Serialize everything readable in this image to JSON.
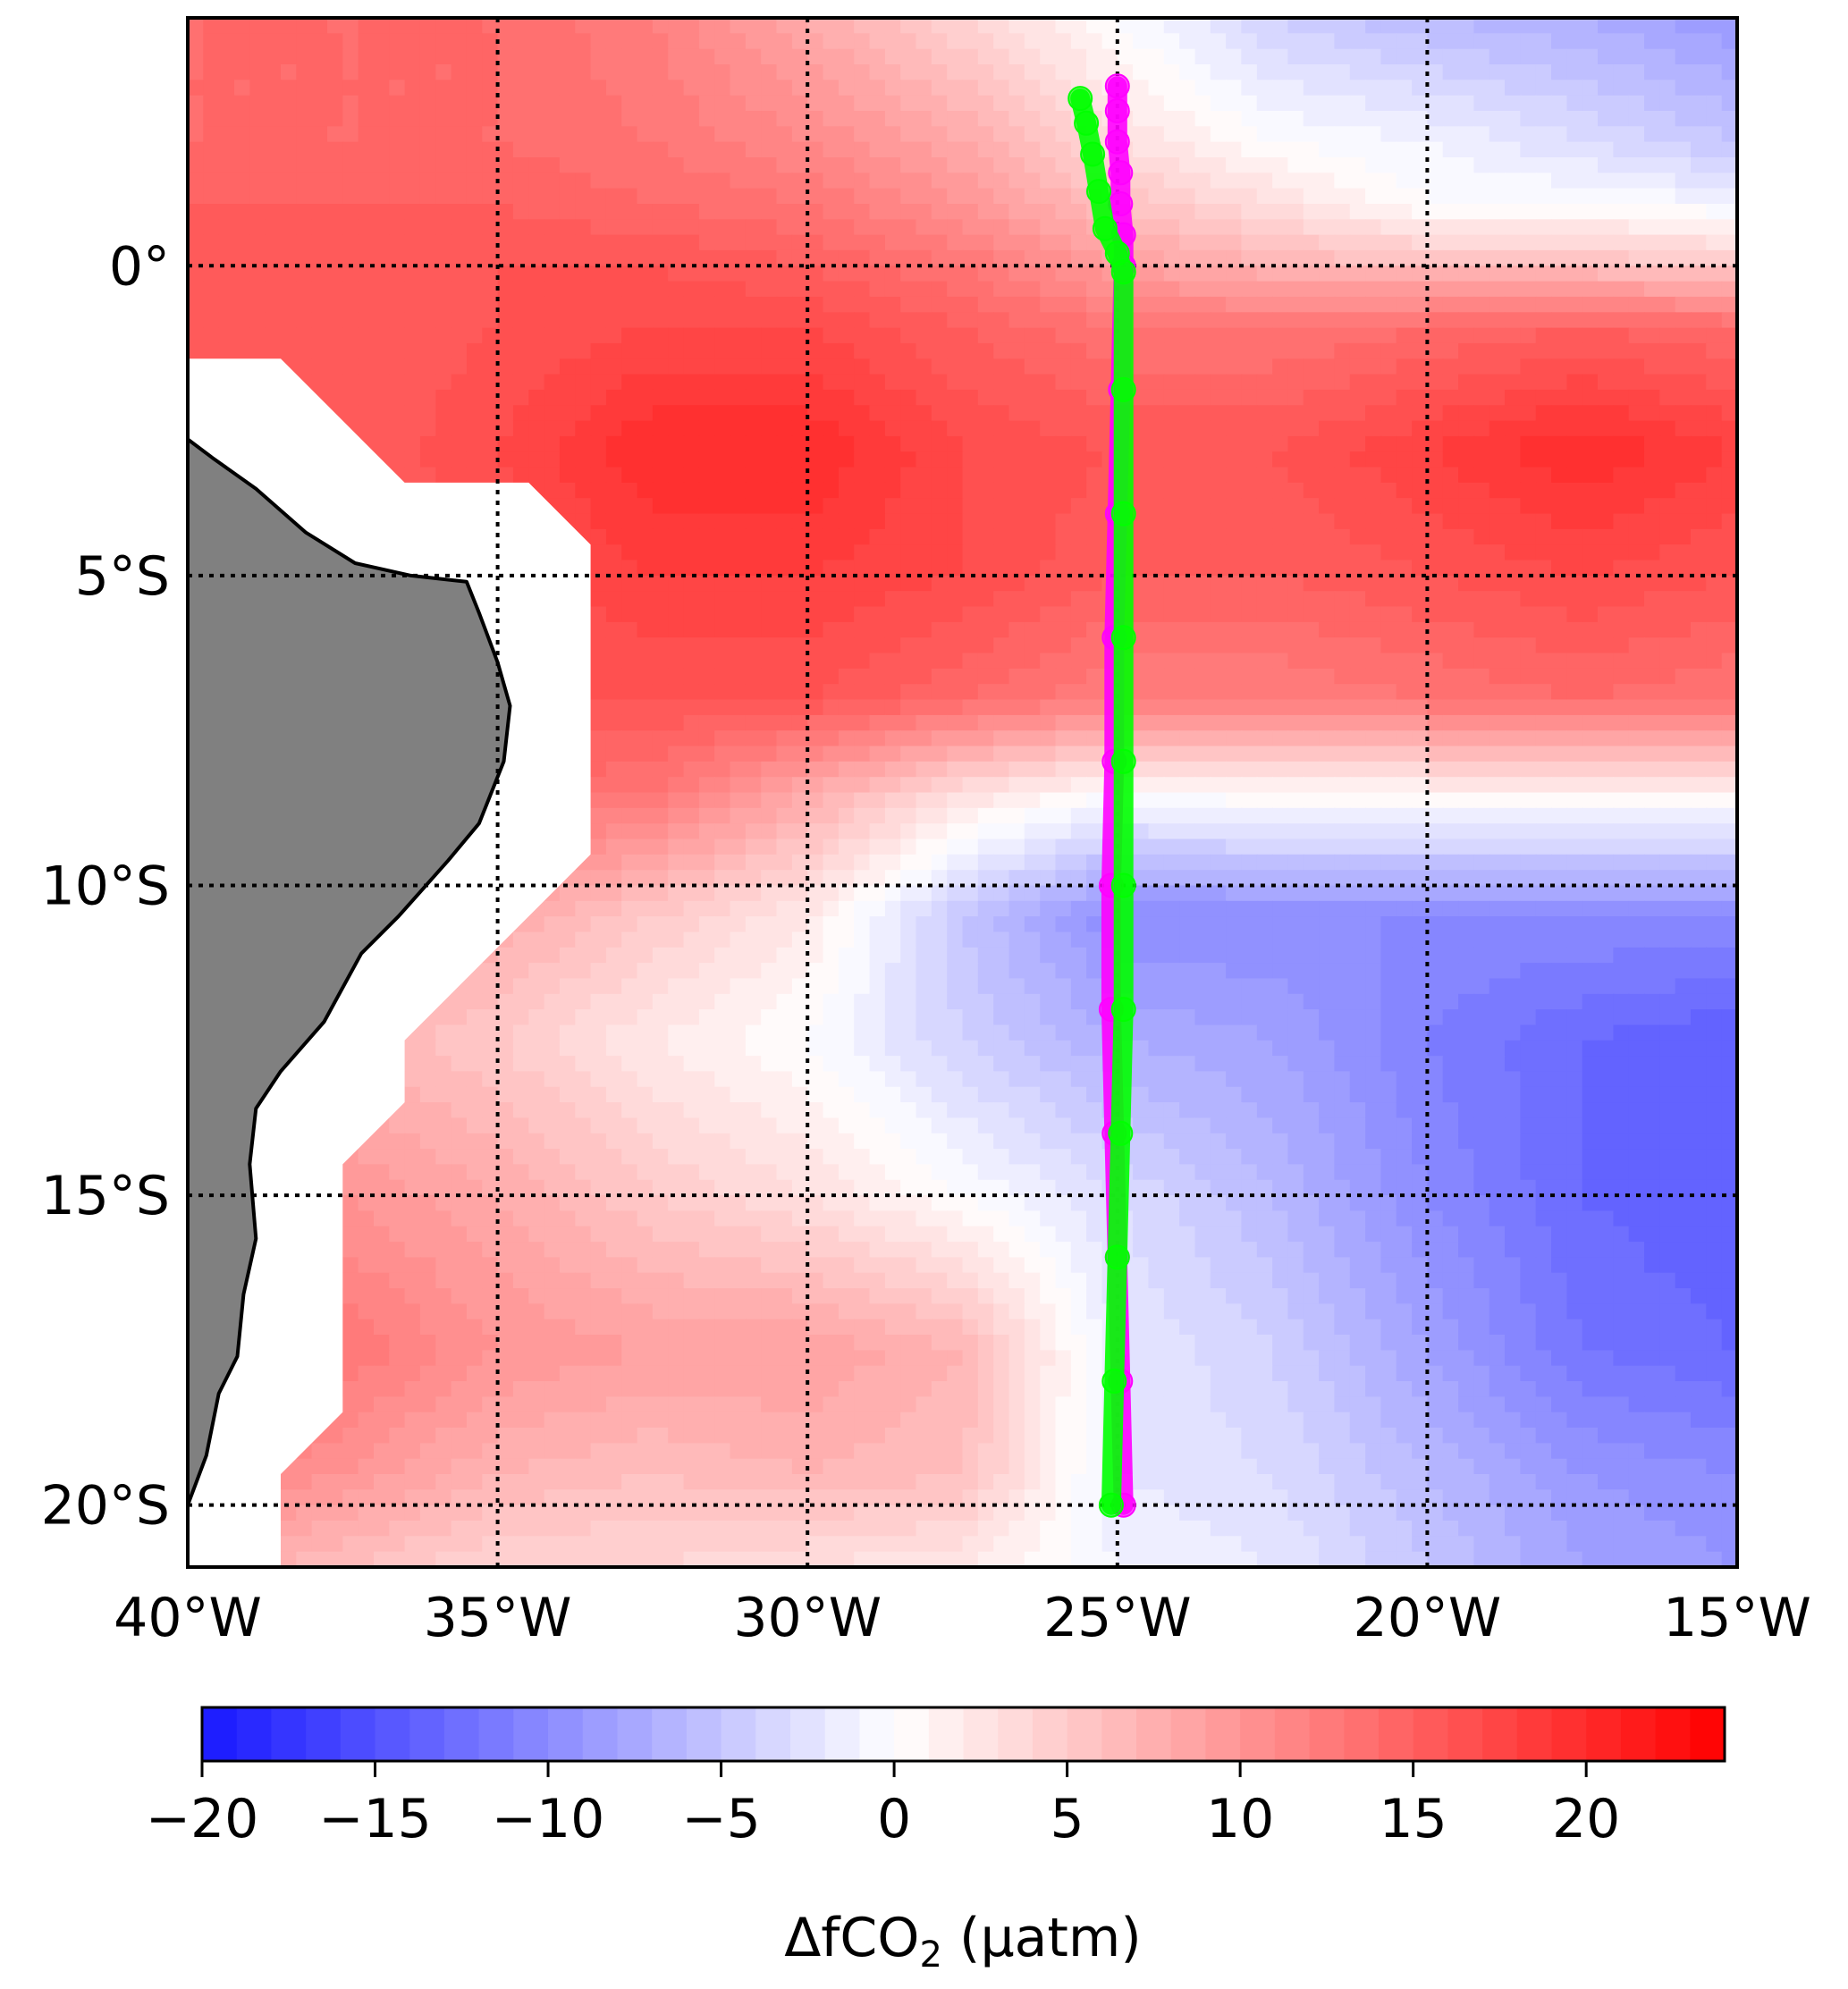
{
  "chart_data": {
    "type": "heatmap",
    "title": "",
    "xlabel": "",
    "ylabel": "",
    "xlim": [
      -40,
      -15
    ],
    "ylim": [
      -21,
      4
    ],
    "x_ticks": [
      {
        "value": -40,
        "label": "40°W"
      },
      {
        "value": -35,
        "label": "35°W"
      },
      {
        "value": -30,
        "label": "30°W"
      },
      {
        "value": -25,
        "label": "25°W"
      },
      {
        "value": -20,
        "label": "20°W"
      },
      {
        "value": -15,
        "label": "15°W"
      }
    ],
    "y_ticks": [
      {
        "value": 0,
        "label": "0°"
      },
      {
        "value": -5,
        "label": "5°S"
      },
      {
        "value": -10,
        "label": "10°S"
      },
      {
        "value": -15,
        "label": "15°S"
      },
      {
        "value": -20,
        "label": "20°S"
      }
    ],
    "grid": true,
    "colorbar": {
      "label_main": "ΔfCO",
      "label_sub": "2",
      "label_unit": " (μatm)",
      "vmin": -20,
      "vmax": 24,
      "ticks": [
        {
          "value": -20,
          "label": "−20"
        },
        {
          "value": -15,
          "label": "−15"
        },
        {
          "value": -10,
          "label": "−10"
        },
        {
          "value": -5,
          "label": "−5"
        },
        {
          "value": 0,
          "label": "0"
        },
        {
          "value": 5,
          "label": "5"
        },
        {
          "value": 10,
          "label": "10"
        },
        {
          "value": 15,
          "label": "15"
        },
        {
          "value": 20,
          "label": "20"
        }
      ],
      "colors": {
        "low": "#1818ff",
        "mid": "#ffffff",
        "high": "#ff0000"
      }
    },
    "field": {
      "lons": [
        -40,
        -37.5,
        -35,
        -32.5,
        -30,
        -27.5,
        -25,
        -22.5,
        -20,
        -17.5,
        -15
      ],
      "lats": [
        4,
        2,
        1,
        0,
        -1,
        -3,
        -5,
        -7,
        -8.5,
        -10.5,
        -12.5,
        -15,
        -17.5,
        -19.5,
        -21
      ],
      "values": [
        [
          14,
          14,
          14,
          12,
          8,
          4,
          0,
          -4,
          -6,
          -7,
          -9
        ],
        [
          14,
          14,
          14,
          13,
          11,
          8,
          3,
          0,
          -1,
          -3,
          -5
        ],
        [
          15,
          15,
          15,
          14,
          13,
          10,
          6,
          3,
          0,
          0,
          -1
        ],
        [
          15,
          15,
          16,
          16,
          15,
          13,
          9,
          7,
          6,
          6,
          5
        ],
        [
          15,
          15,
          16,
          17,
          17,
          15,
          13,
          13,
          14,
          15,
          14
        ],
        [
          15,
          15,
          17,
          20,
          20,
          17,
          16,
          16,
          18,
          20,
          18
        ],
        [
          15,
          15,
          16,
          18,
          18,
          17,
          15,
          15,
          16,
          17,
          16
        ],
        [
          15,
          15,
          16,
          16,
          16,
          14,
          12,
          12,
          13,
          14,
          13
        ],
        [
          14,
          14,
          14,
          13,
          8,
          3,
          0,
          1,
          1,
          1,
          1
        ],
        [
          11,
          10,
          8,
          5,
          2,
          -5,
          -10,
          -10,
          -10,
          -10,
          -10
        ],
        [
          8,
          7,
          5,
          2,
          0,
          -4,
          -7,
          -8,
          -11,
          -13,
          -14
        ],
        [
          11,
          10,
          8,
          5,
          3,
          0,
          -3,
          -6,
          -10,
          -13,
          -14
        ],
        [
          14,
          13,
          10,
          9,
          9,
          7,
          -2,
          -4,
          -8,
          -12,
          -13
        ],
        [
          12,
          10,
          7,
          6,
          7,
          6,
          -2,
          -3,
          -6,
          -9,
          -10
        ],
        [
          8,
          6,
          4,
          4,
          3,
          2,
          -1,
          -2,
          -5,
          -8,
          -9
        ]
      ]
    },
    "land": {
      "color": "#808080",
      "coast": [
        [
          -40,
          -2.8
        ],
        [
          -39.6,
          -3.1
        ],
        [
          -38.9,
          -3.6
        ],
        [
          -38.1,
          -4.3
        ],
        [
          -37.3,
          -4.8
        ],
        [
          -36.4,
          -5.0
        ],
        [
          -35.5,
          -5.1
        ],
        [
          -35.3,
          -5.6
        ],
        [
          -35.0,
          -6.4
        ],
        [
          -34.8,
          -7.1
        ],
        [
          -34.9,
          -8.0
        ],
        [
          -35.3,
          -9.0
        ],
        [
          -35.8,
          -9.6
        ],
        [
          -36.6,
          -10.5
        ],
        [
          -37.2,
          -11.1
        ],
        [
          -37.8,
          -12.2
        ],
        [
          -38.5,
          -13.0
        ],
        [
          -38.9,
          -13.6
        ],
        [
          -39.0,
          -14.5
        ],
        [
          -38.9,
          -15.7
        ],
        [
          -39.1,
          -16.6
        ],
        [
          -39.2,
          -17.6
        ],
        [
          -39.5,
          -18.2
        ],
        [
          -39.7,
          -19.2
        ],
        [
          -40.0,
          -20.0
        ],
        [
          -40,
          -21
        ],
        [
          -40.1,
          -21
        ],
        [
          -40.1,
          -2.8
        ]
      ],
      "mask": [
        [
          -40,
          -1.5
        ],
        [
          -38.5,
          -1.5
        ],
        [
          -36.5,
          -3.5
        ],
        [
          -34.5,
          -3.5
        ],
        [
          -33.5,
          -4.5
        ],
        [
          -33.5,
          -9.5
        ],
        [
          -35,
          -11
        ],
        [
          -36.5,
          -12.5
        ],
        [
          -36.5,
          -13.5
        ],
        [
          -37.5,
          -14.5
        ],
        [
          -37.5,
          -18.5
        ],
        [
          -38.5,
          -19.5
        ],
        [
          -38.5,
          -21
        ],
        [
          -40,
          -21
        ]
      ]
    },
    "series": [
      {
        "color": "#ff00ff",
        "points": [
          [
            -25.0,
            2.9
          ],
          [
            -25.0,
            2.5
          ],
          [
            -25.0,
            2.0
          ],
          [
            -24.95,
            1.5
          ],
          [
            -24.95,
            1.0
          ],
          [
            -24.9,
            0.5
          ],
          [
            -24.9,
            0.0
          ],
          [
            -24.95,
            -2
          ],
          [
            -25.0,
            -4
          ],
          [
            -25.05,
            -6
          ],
          [
            -25.05,
            -8
          ],
          [
            -25.1,
            -10
          ],
          [
            -25.1,
            -12
          ],
          [
            -25.05,
            -14
          ],
          [
            -25.0,
            -16
          ],
          [
            -24.95,
            -18
          ],
          [
            -24.9,
            -20
          ]
        ]
      },
      {
        "color": "#00ff00",
        "points": [
          [
            -25.6,
            2.7
          ],
          [
            -25.5,
            2.3
          ],
          [
            -25.4,
            1.8
          ],
          [
            -25.3,
            1.2
          ],
          [
            -25.2,
            0.6
          ],
          [
            -25.0,
            0.2
          ],
          [
            -24.9,
            -0.1
          ],
          [
            -24.9,
            -2
          ],
          [
            -24.9,
            -4
          ],
          [
            -24.9,
            -6
          ],
          [
            -24.9,
            -8
          ],
          [
            -24.9,
            -10
          ],
          [
            -24.9,
            -12
          ],
          [
            -24.95,
            -14
          ],
          [
            -25.0,
            -16
          ],
          [
            -25.05,
            -18
          ],
          [
            -25.1,
            -20
          ]
        ]
      }
    ]
  }
}
